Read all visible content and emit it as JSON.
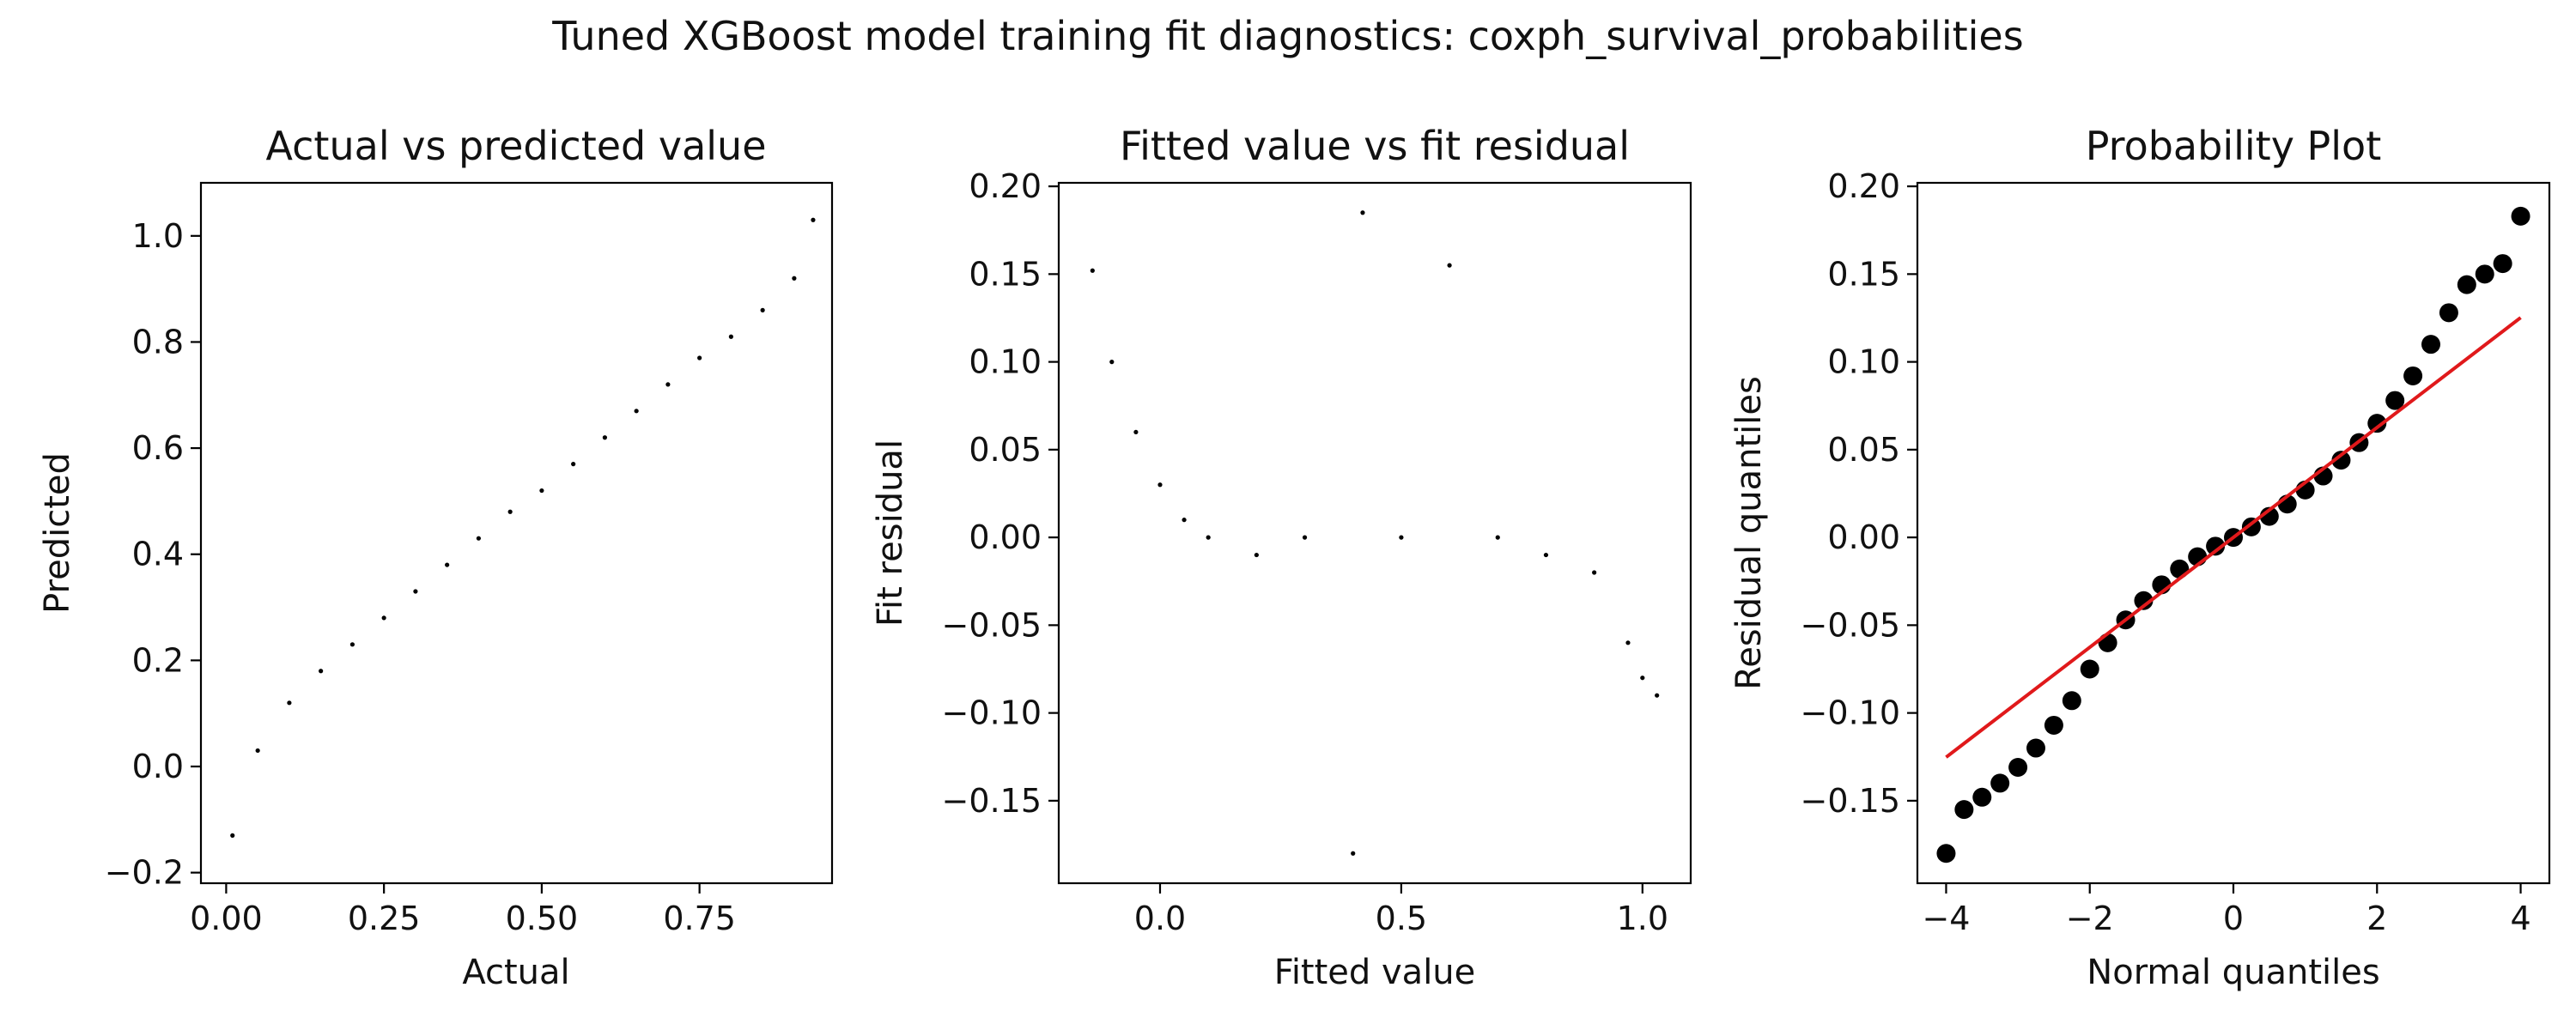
{
  "figure": {
    "suptitle": "Tuned XGBoost model training fit diagnostics: coxph_survival_probabilities"
  },
  "chart_data": [
    {
      "type": "scatter",
      "title": "Actual vs predicted value",
      "xlabel": "Actual",
      "ylabel": "Predicted",
      "xlim": [
        -0.04,
        0.96
      ],
      "ylim": [
        -0.22,
        1.1
      ],
      "xticks": [
        0.0,
        0.25,
        0.5,
        0.75
      ],
      "xtick_labels": [
        "0.00",
        "0.25",
        "0.50",
        "0.75"
      ],
      "yticks": [
        -0.2,
        0.0,
        0.2,
        0.4,
        0.6,
        0.8,
        1.0
      ],
      "ytick_labels": [
        "−0.2",
        "0.0",
        "0.2",
        "0.4",
        "0.6",
        "0.8",
        "1.0"
      ],
      "grid": false,
      "marker_color": "#000000",
      "x": [
        0.01,
        0.05,
        0.1,
        0.15,
        0.2,
        0.25,
        0.3,
        0.35,
        0.4,
        0.45,
        0.5,
        0.55,
        0.6,
        0.65,
        0.7,
        0.75,
        0.8,
        0.85,
        0.9,
        0.93
      ],
      "y": [
        -0.13,
        0.03,
        0.12,
        0.18,
        0.23,
        0.28,
        0.33,
        0.38,
        0.43,
        0.48,
        0.52,
        0.57,
        0.62,
        0.67,
        0.72,
        0.77,
        0.81,
        0.86,
        0.92,
        1.03
      ]
    },
    {
      "type": "scatter",
      "title": "Fitted value vs fit residual",
      "xlabel": "Fitted value",
      "ylabel": "Fit residual",
      "xlim": [
        -0.21,
        1.1
      ],
      "ylim": [
        -0.197,
        0.202
      ],
      "xticks": [
        0.0,
        0.5,
        1.0
      ],
      "xtick_labels": [
        "0.0",
        "0.5",
        "1.0"
      ],
      "yticks": [
        -0.15,
        -0.1,
        -0.05,
        0.0,
        0.05,
        0.1,
        0.15,
        0.2
      ],
      "ytick_labels": [
        "−0.15",
        "−0.10",
        "−0.05",
        "0.00",
        "0.05",
        "0.10",
        "0.15",
        "0.20"
      ],
      "grid": false,
      "marker_color": "#000000",
      "x": [
        -0.14,
        -0.1,
        -0.05,
        0.0,
        0.05,
        0.1,
        0.2,
        0.3,
        0.4,
        0.42,
        0.5,
        0.6,
        0.7,
        0.8,
        0.9,
        0.97,
        1.0,
        1.03
      ],
      "y": [
        0.152,
        0.1,
        0.06,
        0.03,
        0.01,
        0.0,
        -0.01,
        0.0,
        -0.18,
        0.185,
        0.0,
        0.155,
        0.0,
        -0.01,
        -0.02,
        -0.06,
        -0.08,
        -0.09
      ]
    },
    {
      "type": "scatter",
      "title": "Probability Plot",
      "xlabel": "Normal quantiles",
      "ylabel": "Residual quantiles",
      "xlim": [
        -4.4,
        4.4
      ],
      "ylim": [
        -0.197,
        0.202
      ],
      "xticks": [
        -4,
        -2,
        0,
        2,
        4
      ],
      "xtick_labels": [
        "−4",
        "−2",
        "0",
        "2",
        "4"
      ],
      "yticks": [
        -0.15,
        -0.1,
        -0.05,
        0.0,
        0.05,
        0.1,
        0.15,
        0.2
      ],
      "ytick_labels": [
        "−0.15",
        "−0.10",
        "−0.05",
        "0.00",
        "0.05",
        "0.10",
        "0.15",
        "0.20"
      ],
      "grid": false,
      "marker_color": "#000000",
      "line_color": "#e0191b",
      "fit_line": {
        "slope": 0.0313,
        "intercept": 0.0
      },
      "x": [
        -4.0,
        -3.75,
        -3.5,
        -3.25,
        -3.0,
        -2.75,
        -2.5,
        -2.25,
        -2.0,
        -1.75,
        -1.5,
        -1.25,
        -1.0,
        -0.75,
        -0.5,
        -0.25,
        0.0,
        0.25,
        0.5,
        0.75,
        1.0,
        1.25,
        1.5,
        1.75,
        2.0,
        2.25,
        2.5,
        2.75,
        3.0,
        3.25,
        3.5,
        3.75,
        4.0
      ],
      "y": [
        -0.18,
        -0.155,
        -0.148,
        -0.14,
        -0.131,
        -0.12,
        -0.107,
        -0.093,
        -0.075,
        -0.06,
        -0.047,
        -0.036,
        -0.027,
        -0.018,
        -0.011,
        -0.005,
        0.0,
        0.006,
        0.012,
        0.019,
        0.027,
        0.035,
        0.044,
        0.054,
        0.065,
        0.078,
        0.092,
        0.11,
        0.128,
        0.144,
        0.15,
        0.156,
        0.183
      ]
    }
  ]
}
